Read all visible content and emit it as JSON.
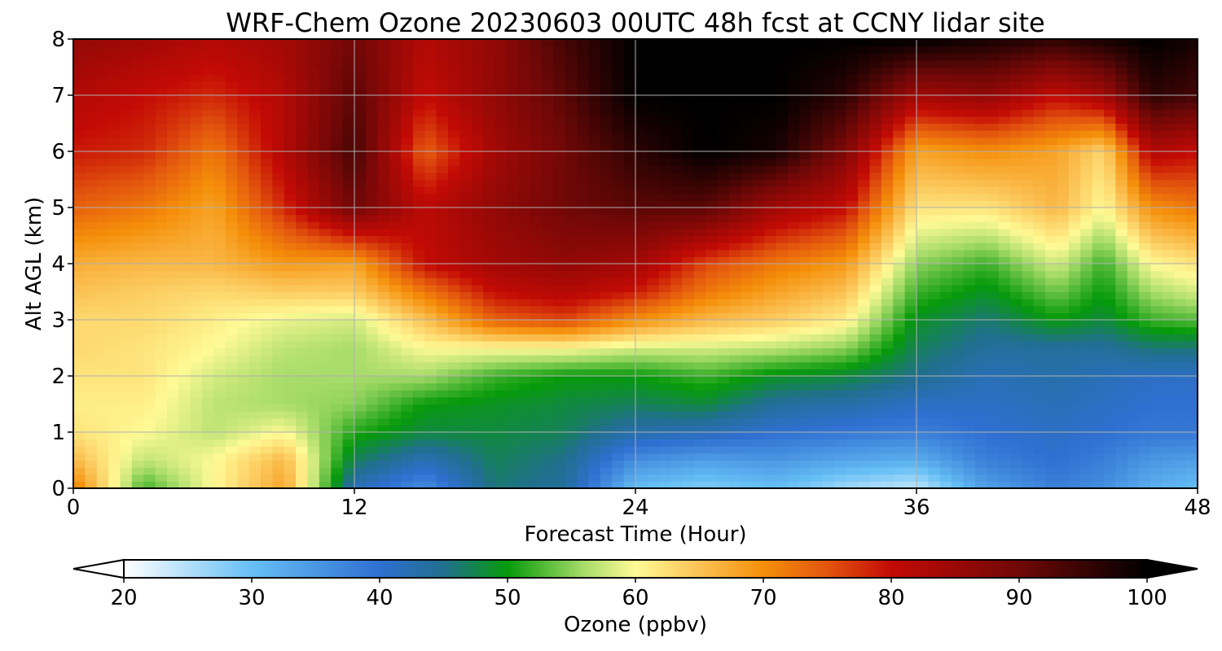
{
  "chart_data": {
    "type": "heatmap",
    "title": "WRF-Chem Ozone  20230603 00UTC 48h fcst at CCNY lidar site",
    "xlabel": "Forecast Time (Hour)",
    "ylabel": "Alt AGL (km)",
    "xlim": [
      0,
      48
    ],
    "ylim": [
      0,
      8
    ],
    "xticks": [
      "0",
      "12",
      "24",
      "36",
      "48"
    ],
    "yticks": [
      "0",
      "1",
      "2",
      "3",
      "4",
      "5",
      "6",
      "7",
      "8"
    ],
    "grid": true,
    "colorbar": {
      "label": "Ozone  (ppbv)",
      "min": 20,
      "max": 100,
      "ticks": [
        "20",
        "30",
        "40",
        "50",
        "60",
        "70",
        "80",
        "90",
        "100"
      ],
      "extend": "both",
      "stops": [
        {
          "v": 20,
          "c": "#ffffff"
        },
        {
          "v": 30,
          "c": "#66bff5"
        },
        {
          "v": 40,
          "c": "#2f6fd1"
        },
        {
          "v": 45,
          "c": "#216f8f"
        },
        {
          "v": 50,
          "c": "#069a0a"
        },
        {
          "v": 56,
          "c": "#a8dc6a"
        },
        {
          "v": 60,
          "c": "#fffa96"
        },
        {
          "v": 65,
          "c": "#fbc254"
        },
        {
          "v": 70,
          "c": "#f58f0a"
        },
        {
          "v": 75,
          "c": "#e3550e"
        },
        {
          "v": 80,
          "c": "#c30a05"
        },
        {
          "v": 90,
          "c": "#700807"
        },
        {
          "v": 100,
          "c": "#000000"
        }
      ]
    },
    "hours": [
      0,
      3,
      6,
      9,
      12,
      15,
      18,
      21,
      24,
      27,
      30,
      33,
      36,
      39,
      42,
      44,
      46,
      48
    ],
    "altitudes_km": [
      0,
      0.5,
      1,
      1.5,
      2,
      2.5,
      3,
      3.5,
      4,
      5,
      6,
      7,
      8
    ],
    "ozone_ppbv": [
      [
        72,
        52,
        60,
        68,
        42,
        36,
        46,
        44,
        30,
        28,
        30,
        26,
        24,
        34,
        38,
        36,
        32,
        30
      ],
      [
        66,
        57,
        60,
        66,
        47,
        42,
        47,
        45,
        36,
        34,
        35,
        33,
        32,
        38,
        40,
        38,
        35,
        34
      ],
      [
        62,
        60,
        57,
        60,
        51,
        48,
        48,
        47,
        43,
        42,
        40,
        39,
        38,
        40,
        41,
        40,
        39,
        39
      ],
      [
        61,
        61,
        57,
        56,
        55,
        50,
        49,
        48,
        47,
        48,
        44,
        43,
        41,
        41,
        42,
        41,
        40,
        40
      ],
      [
        62,
        62,
        58,
        56,
        56,
        56,
        52,
        50,
        50,
        52,
        49,
        48,
        45,
        42,
        43,
        42,
        41,
        41
      ],
      [
        63,
        62,
        60,
        57,
        56,
        60,
        60,
        60,
        58,
        58,
        57,
        55,
        47,
        44,
        44,
        44,
        46,
        46
      ],
      [
        63,
        63,
        61,
        59,
        58,
        65,
        74,
        76,
        70,
        66,
        64,
        61,
        49,
        46,
        50,
        48,
        52,
        53
      ],
      [
        65,
        64,
        63,
        64,
        64,
        72,
        80,
        82,
        79,
        72,
        68,
        65,
        52,
        49,
        54,
        50,
        56,
        58
      ],
      [
        67,
        66,
        66,
        69,
        68,
        80,
        84,
        86,
        84,
        76,
        72,
        69,
        55,
        52,
        58,
        52,
        60,
        62
      ],
      [
        74,
        72,
        68,
        78,
        90,
        81,
        86,
        90,
        92,
        92,
        84,
        80,
        62,
        62,
        66,
        60,
        70,
        72
      ],
      [
        79,
        78,
        72,
        82,
        94,
        74,
        84,
        90,
        96,
        100,
        98,
        88,
        68,
        70,
        68,
        63,
        82,
        80
      ],
      [
        82,
        80,
        78,
        82,
        92,
        80,
        86,
        92,
        100,
        100,
        100,
        96,
        84,
        86,
        80,
        84,
        96,
        94
      ],
      [
        86,
        84,
        82,
        84,
        90,
        82,
        86,
        94,
        100,
        100,
        100,
        100,
        100,
        98,
        96,
        98,
        100,
        98
      ]
    ]
  }
}
